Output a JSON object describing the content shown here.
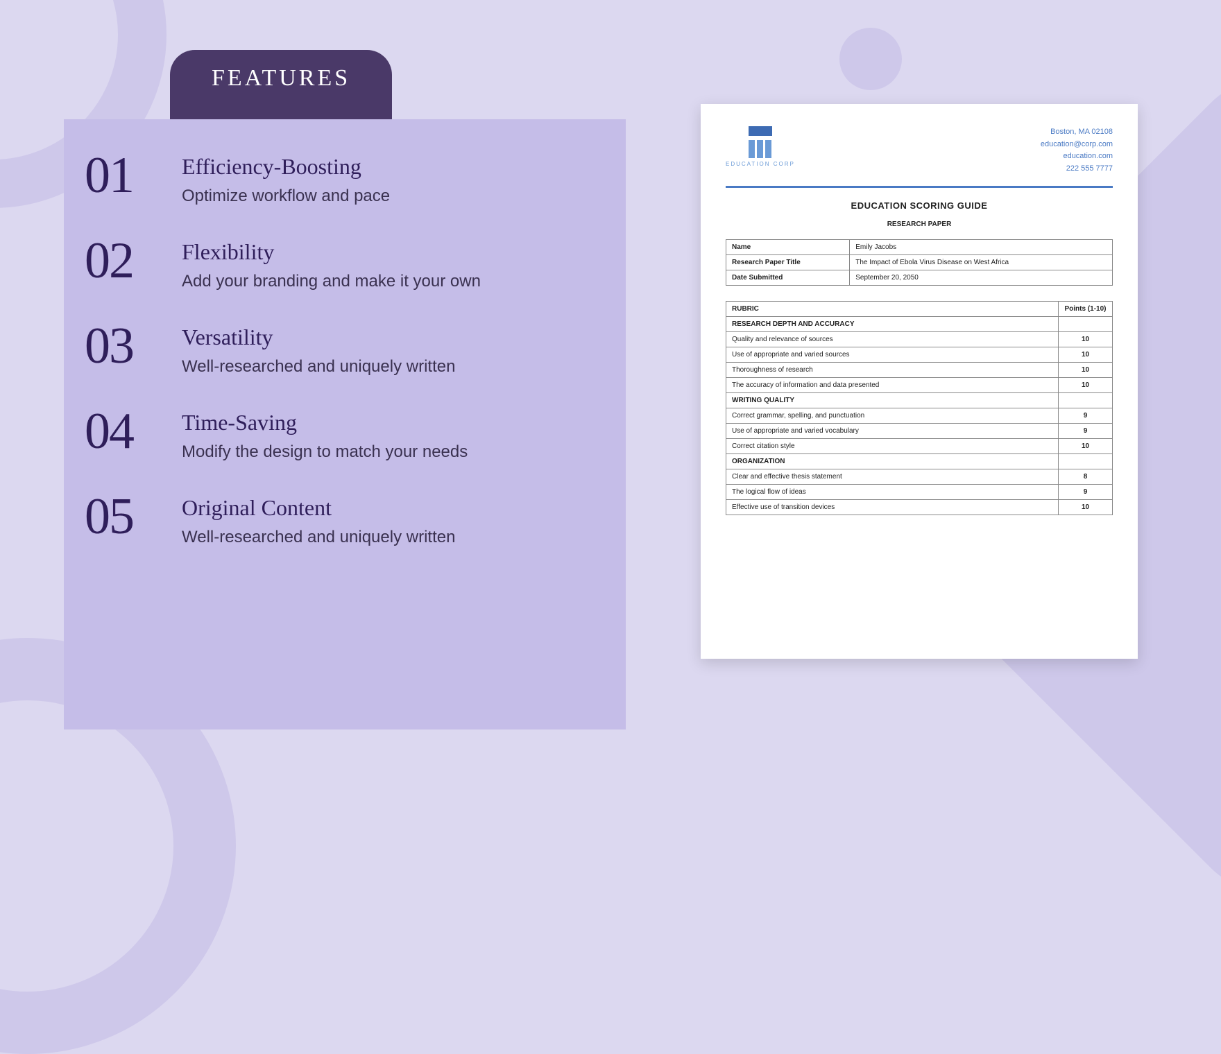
{
  "badge": {
    "label": "FEATURES"
  },
  "features": [
    {
      "num": "01",
      "title": "Efficiency-Boosting",
      "desc": "Optimize workflow and pace"
    },
    {
      "num": "02",
      "title": "Flexibility",
      "desc": "Add your branding and make it your own"
    },
    {
      "num": "03",
      "title": "Versatility",
      "desc": "Well-researched and uniquely written"
    },
    {
      "num": "04",
      "title": "Time-Saving",
      "desc": "Modify the design to match your needs"
    },
    {
      "num": "05",
      "title": "Original Content",
      "desc": "Well-researched and uniquely written"
    }
  ],
  "doc": {
    "logo_text": "EDUCATION CORP",
    "contact": {
      "city": "Boston, MA 02108",
      "email": "education@corp.com",
      "site": "education.com",
      "phone": "222 555 7777"
    },
    "title": "EDUCATION SCORING GUIDE",
    "subtitle": "RESEARCH PAPER",
    "info": {
      "name_label": "Name",
      "name": "Emily Jacobs",
      "paper_label": "Research Paper Title",
      "paper": "The Impact of Ebola Virus Disease on West Africa",
      "date_label": "Date Submitted",
      "date": "September 20, 2050"
    },
    "rubric_header": {
      "col1": "RUBRIC",
      "col2": "Points (1-10)"
    },
    "sections": [
      {
        "heading": "RESEARCH DEPTH AND ACCURACY",
        "rows": [
          {
            "item": "Quality and relevance of sources",
            "pts": "10"
          },
          {
            "item": "Use of appropriate and varied sources",
            "pts": "10"
          },
          {
            "item": "Thoroughness of research",
            "pts": "10"
          },
          {
            "item": "The accuracy of information and data presented",
            "pts": "10"
          }
        ]
      },
      {
        "heading": "WRITING QUALITY",
        "rows": [
          {
            "item": "Correct grammar, spelling, and punctuation",
            "pts": "9"
          },
          {
            "item": "Use of appropriate and varied vocabulary",
            "pts": "9"
          },
          {
            "item": "Correct citation style",
            "pts": "10"
          }
        ]
      },
      {
        "heading": "ORGANIZATION",
        "rows": [
          {
            "item": "Clear and effective thesis statement",
            "pts": "8"
          },
          {
            "item": "The logical flow of ideas",
            "pts": "9"
          },
          {
            "item": "Effective use of transition devices",
            "pts": "10"
          }
        ]
      }
    ]
  },
  "colors": {
    "page_bg": "#dcd8f0",
    "shape_bg": "#cec8ea",
    "panel_bg": "#c5bde8",
    "badge_bg": "#4a3968",
    "ink": "#2f1e5a",
    "doc_blue": "#4a7ac4"
  }
}
